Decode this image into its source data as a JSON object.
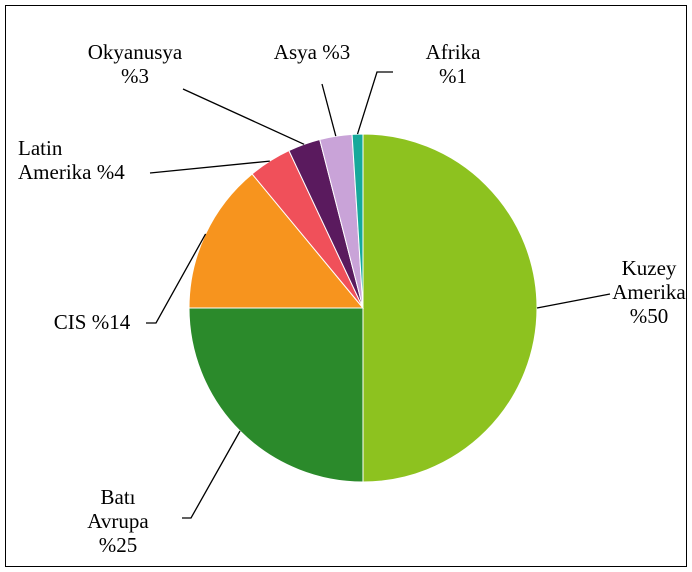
{
  "chart_data": {
    "type": "pie",
    "categories": [
      "Kuzey Amerika",
      "Batı Avrupa",
      "CIS",
      "Latin Amerika",
      "Okyanusya",
      "Asya",
      "Afrika"
    ],
    "values": [
      50,
      25,
      14,
      4,
      3,
      3,
      1
    ],
    "value_labels": [
      "%50",
      "%25",
      "%14",
      "%4",
      "%3",
      "%3",
      "%1"
    ],
    "colors": [
      "#8DC21F",
      "#2B8A2B",
      "#F7941E",
      "#F0505A",
      "#5A1A5E",
      "#C9A3D8",
      "#16A99B"
    ],
    "legend": "none"
  }
}
